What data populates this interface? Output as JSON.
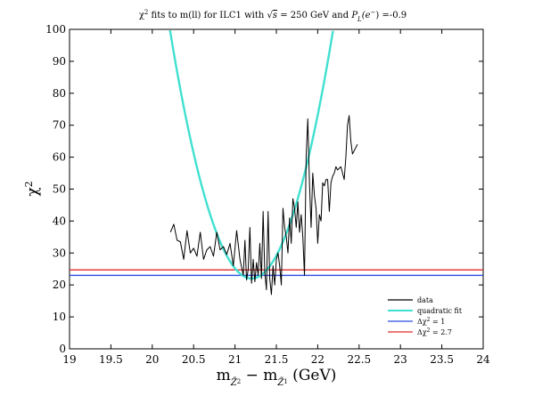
{
  "chart_data": {
    "type": "line",
    "title": "χ² fits to m(ll) for ILC1 with √s = 250 GeV and P_L(e⁻) =-0.9",
    "title_parts": {
      "prefix": "χ",
      "prefix_sup": "2",
      "middle": " fits to m(ll) for ILC1 with ",
      "sqrt_sign": "√",
      "sqrt_arg": "s",
      "energy": " = 250 GeV and ",
      "p_main": "P",
      "p_sub": "L",
      "p_arg": "(e",
      "p_arg_sup": "−",
      "p_arg_close": ")",
      "p_value": " =-0.9"
    },
    "ylabel_parts": {
      "base": "χ",
      "sup": "2"
    },
    "xlabel_parts": {
      "m1": "m",
      "m1_sub": "Z̃",
      "m1_subsub": "2",
      "minus": " − ",
      "m2": "m",
      "m2_sub": "Z̃",
      "m2_subsub": "1",
      "unit": "  (GeV)"
    },
    "xlim": [
      19,
      24
    ],
    "ylim": [
      0,
      100
    ],
    "xticks": [
      "19",
      "19.5",
      "20",
      "20.5",
      "21",
      "21.5",
      "22",
      "22.5",
      "23",
      "23.5",
      "24"
    ],
    "yticks": [
      "0",
      "10",
      "20",
      "30",
      "40",
      "50",
      "60",
      "70",
      "80",
      "90",
      "100"
    ],
    "grid": false,
    "legend_position": "bottom-right",
    "series": [
      {
        "name": "data",
        "color": "#000000",
        "x": [
          20.22,
          20.26,
          20.3,
          20.34,
          20.38,
          20.42,
          20.46,
          20.5,
          20.54,
          20.58,
          20.62,
          20.66,
          20.7,
          20.74,
          20.78,
          20.82,
          20.86,
          20.9,
          20.94,
          20.98,
          21.02,
          21.06,
          21.1,
          21.12,
          21.14,
          21.16,
          21.18,
          21.2,
          21.22,
          21.24,
          21.26,
          21.28,
          21.3,
          21.32,
          21.34,
          21.36,
          21.38,
          21.4,
          21.42,
          21.44,
          21.46,
          21.48,
          21.5,
          21.52,
          21.54,
          21.56,
          21.58,
          21.6,
          21.62,
          21.64,
          21.66,
          21.68,
          21.7,
          21.72,
          21.74,
          21.76,
          21.78,
          21.8,
          21.82,
          21.84,
          21.86,
          21.88,
          21.9,
          21.92,
          21.94,
          21.96,
          21.98,
          22.0,
          22.02,
          22.04,
          22.06,
          22.08,
          22.1,
          22.12,
          22.14,
          22.16,
          22.18,
          22.2,
          22.22,
          22.24,
          22.26,
          22.28,
          22.3,
          22.32,
          22.34,
          22.36,
          22.38,
          22.4,
          22.42,
          22.44,
          22.46,
          22.48
        ],
        "y": [
          36.5,
          39,
          34,
          33.5,
          28,
          37,
          30,
          31.5,
          29,
          36.5,
          28,
          31,
          32,
          29,
          36.5,
          31,
          32,
          29.5,
          33,
          26,
          37,
          28,
          23,
          34,
          21.5,
          25,
          38,
          20.5,
          28,
          21,
          27,
          23,
          33,
          22,
          43,
          24,
          18.5,
          43,
          22,
          17,
          26,
          20,
          28,
          30,
          26,
          20,
          44,
          38,
          35,
          30,
          41,
          33,
          47,
          44,
          38,
          46,
          36.5,
          42,
          35,
          23,
          60,
          72,
          52,
          38,
          55,
          48,
          44,
          33,
          42,
          40,
          52,
          51,
          53,
          53,
          43,
          52,
          54,
          55,
          57,
          56,
          56.5,
          57,
          55,
          53,
          60,
          70,
          73,
          65,
          61,
          62,
          63,
          64
        ]
      },
      {
        "name": "quadratic fit",
        "color": "#40e0d0",
        "fit": {
          "a": 80,
          "x0": 21.2,
          "c": 22,
          "x_range": [
            19.1,
            23.08
          ]
        }
      },
      {
        "name": "Δχ² = 1",
        "label_parts": {
          "prefix": "Δχ",
          "sup": "2",
          "rest": " = 1"
        },
        "color": "#2b4de0",
        "constant": 23
      },
      {
        "name": "Δχ² = 2.7",
        "label_parts": {
          "prefix": "Δχ",
          "sup": "2",
          "rest": " = 2.7"
        },
        "color": "#e02b2b",
        "constant": 24.7
      }
    ]
  }
}
